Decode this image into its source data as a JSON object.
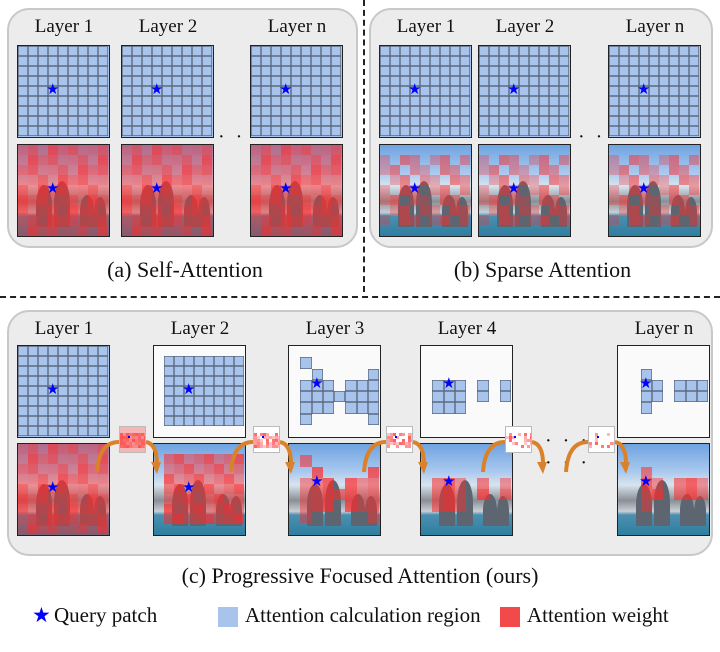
{
  "colors": {
    "query": "#0000ff",
    "region": "#a9c4ec",
    "weight": "#f24a4a",
    "panel": "#ececec"
  },
  "panel_a": {
    "labels": [
      "Layer 1",
      "Layer 2",
      "Layer n"
    ],
    "caption": "(a) Self-Attention"
  },
  "panel_b": {
    "labels": [
      "Layer 1",
      "Layer 2",
      "Layer n"
    ],
    "caption": "(b) Sparse Attention"
  },
  "panel_c": {
    "labels": [
      "Layer 1",
      "Layer 2",
      "Layer 3",
      "Layer 4",
      "Layer n"
    ],
    "caption": "(c) Progressive Focused Attention (ours)"
  },
  "ellipsis": "· · ·",
  "star": "★",
  "legend": {
    "query": "Query patch",
    "region": "Attention calculation region",
    "weight": "Attention weight"
  }
}
